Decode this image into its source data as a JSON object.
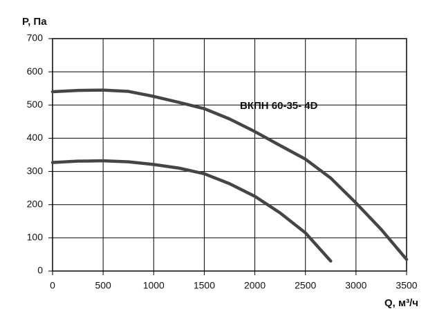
{
  "chart_data": {
    "type": "line",
    "y_label": "P, Па",
    "x_label": "Q, м³/ч",
    "annotation": "ВКПН 60-35- 4D",
    "x": [
      0,
      250,
      500,
      750,
      1000,
      1250,
      1500,
      1750,
      2000,
      2250,
      2500,
      2750,
      3000,
      3250,
      3500
    ],
    "series": [
      {
        "color": "#454545",
        "values": [
          540,
          544,
          545,
          541,
          526,
          508,
          489,
          458,
          420,
          378,
          337,
          280,
          205,
          125,
          35
        ]
      },
      {
        "color": "#454545",
        "values": [
          327,
          331,
          332,
          329,
          321,
          310,
          293,
          263,
          225,
          175,
          115,
          30,
          null,
          null,
          null
        ]
      }
    ],
    "xlim": [
      0,
      3500
    ],
    "xticks": [
      0,
      500,
      1000,
      1500,
      2000,
      2500,
      3000,
      3500
    ],
    "ylim": [
      0,
      700
    ],
    "yticks": [
      0,
      100,
      200,
      300,
      400,
      500,
      600,
      700
    ],
    "grid": true
  }
}
